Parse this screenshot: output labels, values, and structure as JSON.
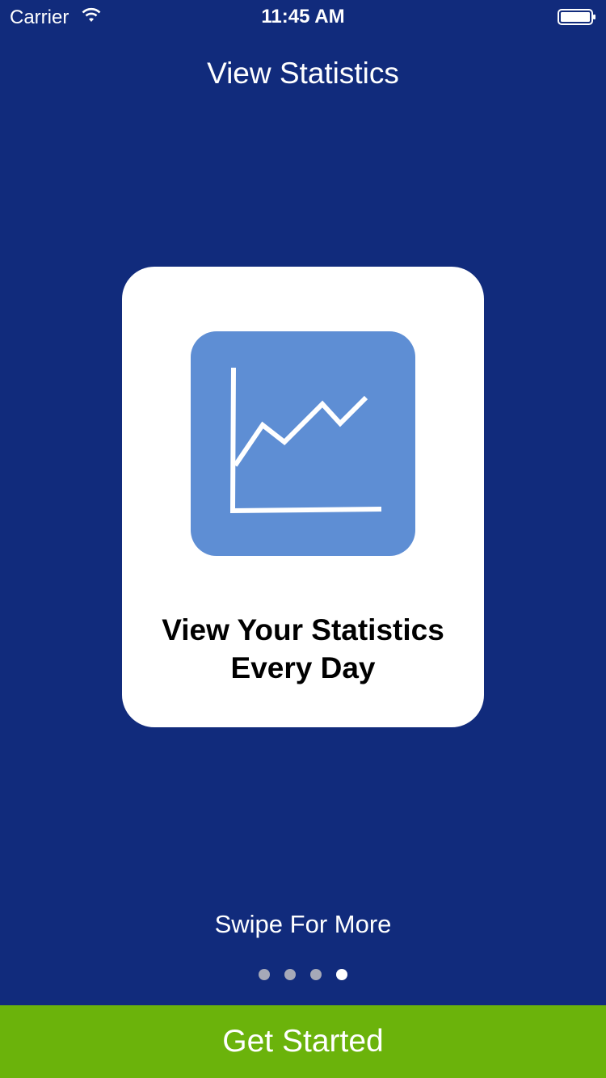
{
  "status_bar": {
    "carrier": "Carrier",
    "time": "11:45 AM"
  },
  "header": {
    "title": "View Statistics"
  },
  "card": {
    "icon": "line-chart-icon",
    "caption_line1": "View Your Statistics",
    "caption_line2": "Every Day"
  },
  "pager": {
    "hint": "Swipe For More",
    "total_pages": 4,
    "current_page": 4
  },
  "footer": {
    "button_label": "Get Started"
  },
  "colors": {
    "background": "#112b7c",
    "icon_tile": "#5e8ed4",
    "button": "#6bb30b"
  }
}
